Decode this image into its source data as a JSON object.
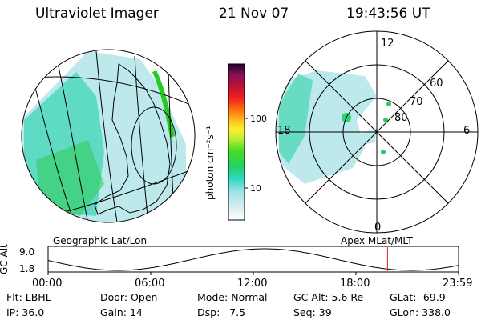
{
  "header": {
    "title": "Ultraviolet Imager",
    "date": "21 Nov 07",
    "time": "19:43:56 UT"
  },
  "geo_panel": {
    "label": "Geographic Lat/Lon"
  },
  "colorbar": {
    "unit_label": "photon cm⁻²s⁻¹",
    "ticks": [
      "100",
      "10"
    ]
  },
  "polar_plot": {
    "label": "Apex MLat/MLT",
    "mlt_labels": [
      "12",
      "18",
      "6",
      "0"
    ],
    "lat_labels": [
      "60",
      "70",
      "80"
    ]
  },
  "altitude_plot": {
    "ylabel": "GC Alt",
    "y_ticks": [
      "9.0",
      "1.8"
    ],
    "x_ticks": [
      "00:00",
      "06:00",
      "12:00",
      "18:00",
      "23:59"
    ],
    "current_time_fraction": 0.827
  },
  "info": {
    "row1": [
      {
        "label": "Flt:",
        "value": "LBHL"
      },
      {
        "label": "Door:",
        "value": "Open"
      },
      {
        "label": "Mode:",
        "value": "Normal"
      },
      {
        "label": "GC Alt:",
        "value": "5.6 Re"
      },
      {
        "label": "GLat:",
        "value": "-69.9"
      }
    ],
    "row2": [
      {
        "label": "IP:",
        "value": "36.0"
      },
      {
        "label": "Gain:",
        "value": "14"
      },
      {
        "label": "Dsp:",
        "value": "7.5"
      },
      {
        "label": "Seq:",
        "value": "39"
      },
      {
        "label": "GLon:",
        "value": "338.0"
      }
    ]
  },
  "colors": {
    "aurora_green": "#22cc22",
    "aurora_cyan": "#22ddcc",
    "aurora_light": "#bde9ec",
    "marker_red": "#dd2222"
  }
}
